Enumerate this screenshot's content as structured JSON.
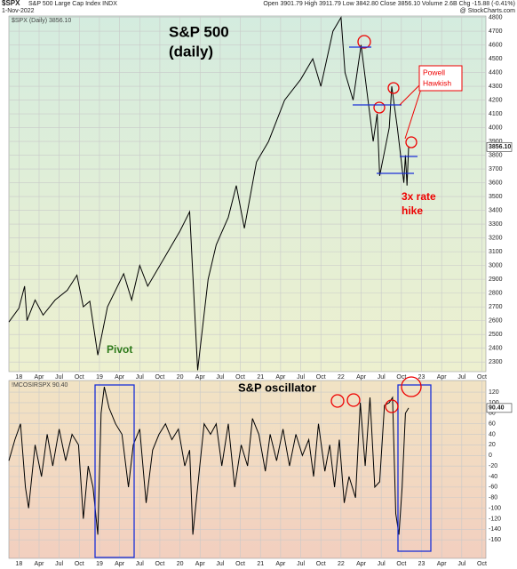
{
  "chart_data": [
    {
      "type": "line",
      "header": {
        "symbol": "$SPX",
        "name": "S&P 500 Large Cap Index INDX",
        "quote": "Open 3901.79  High 3911.79  Low 3842.80  Close 3856.10  Volume 2.6B  Chg -15.88 (-0.41%)",
        "date": "1-Nov-2022",
        "source": "@ StockCharts.com"
      },
      "legend": "$SPX (Daily) 3856.10",
      "last_label": "3856.10",
      "annotations": [
        "S&P 500",
        "(daily)",
        "Pivot",
        "Powell",
        "Hawkish",
        "3x rate",
        "hike"
      ],
      "xlim": [
        2017.875,
        2023.8
      ],
      "xticks": [
        {
          "value": 2018,
          "label": "18"
        },
        {
          "value": 2018.25,
          "label": "Apr"
        },
        {
          "value": 2018.5,
          "label": "Jul"
        },
        {
          "value": 2018.75,
          "label": "Oct"
        },
        {
          "value": 2019,
          "label": "19"
        },
        {
          "value": 2019.25,
          "label": "Apr"
        },
        {
          "value": 2019.5,
          "label": "Jul"
        },
        {
          "value": 2019.75,
          "label": "Oct"
        },
        {
          "value": 2020,
          "label": "20"
        },
        {
          "value": 2020.25,
          "label": "Apr"
        },
        {
          "value": 2020.5,
          "label": "Jul"
        },
        {
          "value": 2020.75,
          "label": "Oct"
        },
        {
          "value": 2021,
          "label": "21"
        },
        {
          "value": 2021.25,
          "label": "Apr"
        },
        {
          "value": 2021.5,
          "label": "Jul"
        },
        {
          "value": 2021.75,
          "label": "Oct"
        },
        {
          "value": 2022,
          "label": "22"
        },
        {
          "value": 2022.25,
          "label": "Apr"
        },
        {
          "value": 2022.5,
          "label": "Jul"
        },
        {
          "value": 2022.75,
          "label": "Oct"
        },
        {
          "value": 2023,
          "label": "23"
        },
        {
          "value": 2023.25,
          "label": "Apr"
        },
        {
          "value": 2023.5,
          "label": "Jul"
        },
        {
          "value": 2023.75,
          "label": "Oct"
        }
      ],
      "ylim": [
        2230,
        4810
      ],
      "yticks": [
        2300,
        2400,
        2500,
        2600,
        2700,
        2800,
        2900,
        3000,
        3100,
        3200,
        3300,
        3400,
        3500,
        3600,
        3700,
        3800,
        3900,
        4000,
        4100,
        4200,
        4300,
        4400,
        4500,
        4600,
        4700,
        4800
      ],
      "grid": true,
      "x": [
        2017.875,
        2018.0,
        2018.07,
        2018.1,
        2018.2,
        2018.3,
        2018.45,
        2018.6,
        2018.72,
        2018.8,
        2018.88,
        2018.98,
        2019.1,
        2019.3,
        2019.4,
        2019.5,
        2019.6,
        2019.8,
        2020.0,
        2020.12,
        2020.22,
        2020.35,
        2020.45,
        2020.6,
        2020.7,
        2020.8,
        2020.95,
        2021.1,
        2021.3,
        2021.5,
        2021.65,
        2021.75,
        2021.9,
        2022.0,
        2022.05,
        2022.15,
        2022.25,
        2022.4,
        2022.45,
        2022.48,
        2022.6,
        2022.63,
        2022.7,
        2022.78,
        2022.8,
        2022.82,
        2022.84
      ],
      "series": [
        {
          "name": "$SPX",
          "color": "#000000",
          "values": [
            2590,
            2690,
            2850,
            2600,
            2750,
            2640,
            2750,
            2820,
            2930,
            2700,
            2740,
            2350,
            2700,
            2940,
            2750,
            3000,
            2850,
            3050,
            3250,
            3390,
            2240,
            2900,
            3150,
            3350,
            3580,
            3270,
            3750,
            3900,
            4200,
            4350,
            4500,
            4300,
            4700,
            4800,
            4400,
            4200,
            4600,
            3900,
            4100,
            3650,
            4000,
            4300,
            4000,
            3600,
            3800,
            3580,
            3860
          ]
        }
      ]
    },
    {
      "type": "line",
      "legend": "!MCOSIRSPX 90.40",
      "last_label": "90.40",
      "annotations": [
        "S&P oscillator"
      ],
      "xlim": [
        2017.875,
        2023.8
      ],
      "xticks": [
        {
          "value": 2018,
          "label": "18"
        },
        {
          "value": 2018.25,
          "label": "Apr"
        },
        {
          "value": 2018.5,
          "label": "Jul"
        },
        {
          "value": 2018.75,
          "label": "Oct"
        },
        {
          "value": 2019,
          "label": "19"
        },
        {
          "value": 2019.25,
          "label": "Apr"
        },
        {
          "value": 2019.5,
          "label": "Jul"
        },
        {
          "value": 2019.75,
          "label": "Oct"
        },
        {
          "value": 2020,
          "label": "20"
        },
        {
          "value": 2020.25,
          "label": "Apr"
        },
        {
          "value": 2020.5,
          "label": "Jul"
        },
        {
          "value": 2020.75,
          "label": "Oct"
        },
        {
          "value": 2021,
          "label": "21"
        },
        {
          "value": 2021.25,
          "label": "Apr"
        },
        {
          "value": 2021.5,
          "label": "Jul"
        },
        {
          "value": 2021.75,
          "label": "Oct"
        },
        {
          "value": 2022,
          "label": "22"
        },
        {
          "value": 2022.25,
          "label": "Apr"
        },
        {
          "value": 2022.5,
          "label": "Jul"
        },
        {
          "value": 2022.75,
          "label": "Oct"
        },
        {
          "value": 2023,
          "label": "23"
        },
        {
          "value": 2023.25,
          "label": "Apr"
        },
        {
          "value": 2023.5,
          "label": "Jul"
        },
        {
          "value": 2023.75,
          "label": "Oct"
        }
      ],
      "ylim": [
        -195,
        142
      ],
      "yticks": [
        -160,
        -140,
        -120,
        -100,
        -80,
        -60,
        -40,
        -20,
        0,
        20,
        40,
        60,
        80,
        100,
        120
      ],
      "grid": true,
      "x": [
        2017.875,
        2017.95,
        2018.02,
        2018.08,
        2018.12,
        2018.2,
        2018.28,
        2018.35,
        2018.42,
        2018.5,
        2018.58,
        2018.66,
        2018.74,
        2018.8,
        2018.86,
        2018.92,
        2018.98,
        2019.02,
        2019.06,
        2019.12,
        2019.2,
        2019.28,
        2019.36,
        2019.42,
        2019.5,
        2019.58,
        2019.66,
        2019.74,
        2019.82,
        2019.9,
        2019.98,
        2020.06,
        2020.12,
        2020.16,
        2020.24,
        2020.3,
        2020.38,
        2020.45,
        2020.52,
        2020.6,
        2020.68,
        2020.76,
        2020.84,
        2020.9,
        2020.98,
        2021.06,
        2021.12,
        2021.2,
        2021.28,
        2021.36,
        2021.44,
        2021.52,
        2021.6,
        2021.66,
        2021.72,
        2021.8,
        2021.86,
        2021.92,
        2021.98,
        2022.04,
        2022.1,
        2022.18,
        2022.24,
        2022.3,
        2022.36,
        2022.42,
        2022.48,
        2022.54,
        2022.6,
        2022.64,
        2022.68,
        2022.72,
        2022.76,
        2022.8,
        2022.84
      ],
      "series": [
        {
          "name": "!MCOSIRSPX",
          "color": "#000000",
          "values": [
            -10,
            30,
            60,
            -60,
            -100,
            20,
            -40,
            40,
            -20,
            50,
            -10,
            40,
            20,
            -120,
            -20,
            -60,
            -150,
            80,
            130,
            90,
            60,
            40,
            -60,
            20,
            50,
            -90,
            10,
            40,
            60,
            30,
            50,
            -20,
            10,
            -150,
            -30,
            60,
            40,
            60,
            -20,
            60,
            -60,
            20,
            -20,
            70,
            40,
            -30,
            40,
            -10,
            50,
            -20,
            40,
            0,
            30,
            -40,
            60,
            -30,
            20,
            -60,
            30,
            -90,
            -40,
            -80,
            100,
            -20,
            110,
            -60,
            -50,
            95,
            100,
            110,
            -110,
            -150,
            -60,
            80,
            90
          ]
        }
      ]
    }
  ]
}
